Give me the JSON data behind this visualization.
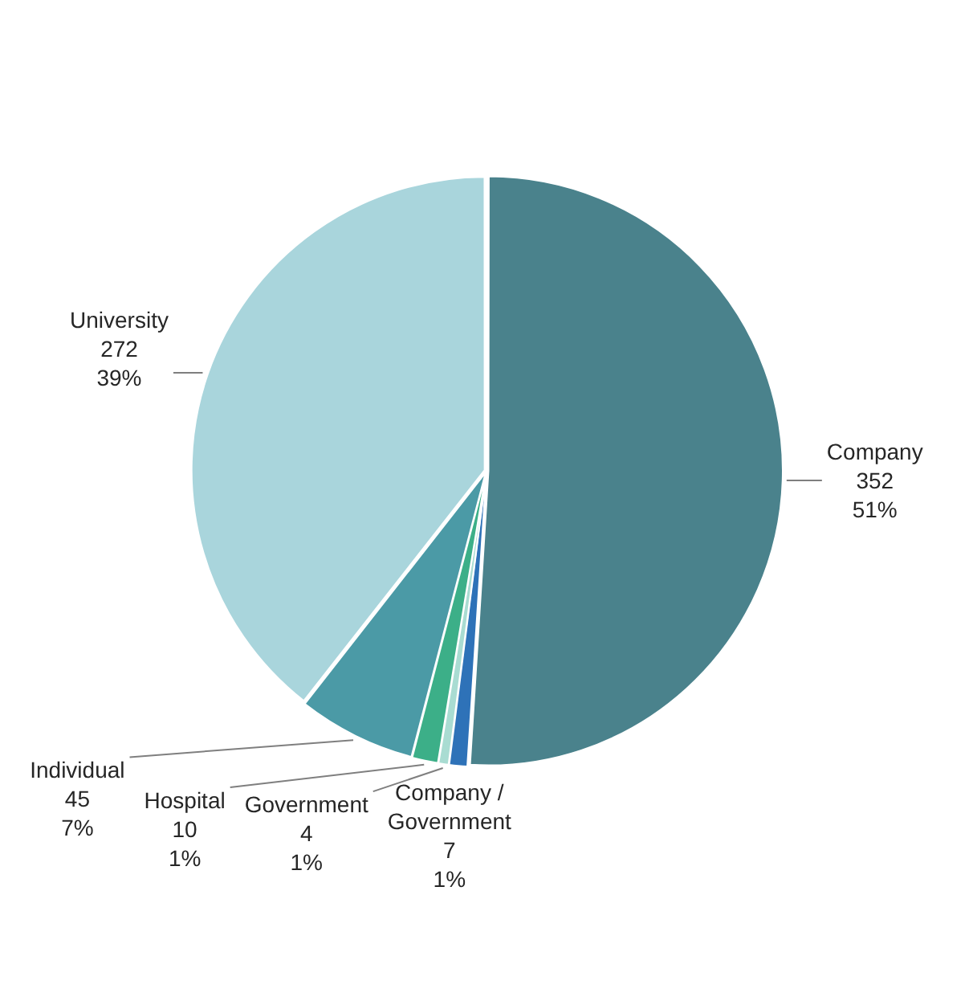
{
  "chart_data": {
    "type": "pie",
    "categories": [
      "Company",
      "Company / Government",
      "Government",
      "Hospital",
      "Individual",
      "University"
    ],
    "values": [
      352,
      7,
      4,
      10,
      45,
      272
    ],
    "value_labels": [
      "352\n51%",
      "7\n1%",
      "4\n1%",
      "10\n1%",
      "45\n7%",
      "272\n39%"
    ],
    "colors": [
      "#4a828c",
      "#2e72b8",
      "#a9dcd2",
      "#3caf88",
      "#4b9aa6",
      "#a9d5dc"
    ],
    "legend": false
  }
}
